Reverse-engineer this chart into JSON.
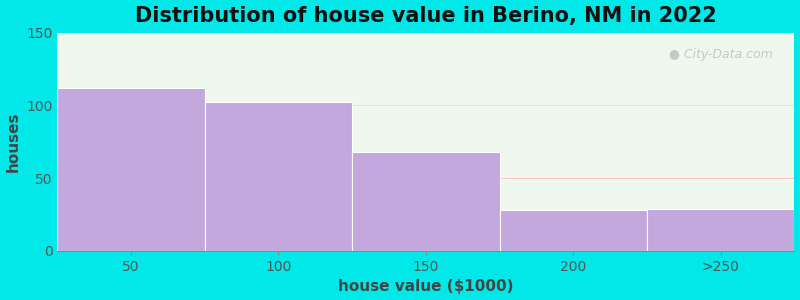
{
  "title": "Distribution of house value in Berino, NM in 2022",
  "xlabel": "house value ($1000)",
  "ylabel": "houses",
  "categories": [
    "50",
    "100",
    "150",
    "200",
    ">250"
  ],
  "values": [
    112,
    102,
    68,
    28,
    29
  ],
  "bar_color": "#c2a8dc",
  "bar_edgecolor": "#ffffff",
  "background_color": "#00e8e8",
  "plot_bg_color": "#eef8ee",
  "ylim": [
    0,
    150
  ],
  "yticks": [
    0,
    50,
    100,
    150
  ],
  "title_fontsize": 15,
  "label_fontsize": 11,
  "tick_fontsize": 10,
  "watermark_text": "City-Data.com",
  "bar_width": 1.0
}
